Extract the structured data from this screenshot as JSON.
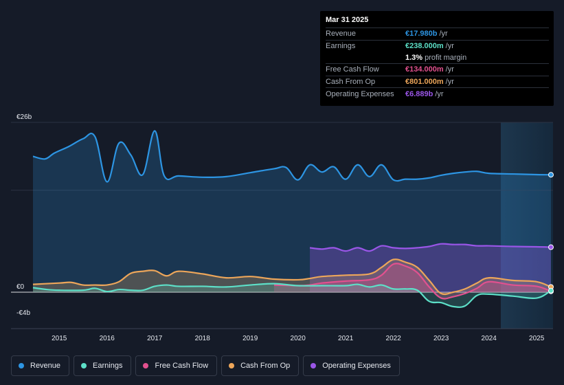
{
  "tooltip": {
    "date": "Mar 31 2025",
    "rows": [
      {
        "label": "Revenue",
        "value": "€17.980b",
        "unit": "/yr",
        "color": "#2d95e3"
      },
      {
        "label": "Earnings",
        "value": "€238.000m",
        "unit": "/yr",
        "color": "#5de0c8"
      },
      {
        "label": "",
        "value": "1.3%",
        "unit": "profit margin",
        "color": "#ffffff"
      },
      {
        "label": "Free Cash Flow",
        "value": "€134.000m",
        "unit": "/yr",
        "color": "#e2518f"
      },
      {
        "label": "Cash From Op",
        "value": "€801.000m",
        "unit": "/yr",
        "color": "#eda65a"
      },
      {
        "label": "Operating Expenses",
        "value": "€6.889b",
        "unit": "/yr",
        "color": "#9a56e8"
      }
    ]
  },
  "legend": [
    {
      "label": "Revenue",
      "color": "#2d95e3"
    },
    {
      "label": "Earnings",
      "color": "#5de0c8"
    },
    {
      "label": "Free Cash Flow",
      "color": "#e2518f"
    },
    {
      "label": "Cash From Op",
      "color": "#eda65a"
    },
    {
      "label": "Operating Expenses",
      "color": "#9a56e8"
    }
  ],
  "chart_data": {
    "type": "area",
    "title": "",
    "xlabel": "",
    "ylabel": "",
    "ylim": [
      -4,
      26
    ],
    "xlim": [
      2014.45,
      2025.3
    ],
    "y_tick_labels": [
      {
        "value": 26,
        "label": "€26b"
      },
      {
        "value": 0,
        "label": "€0"
      },
      {
        "value": -4,
        "label": "-€4b"
      }
    ],
    "x_ticks": [
      2015,
      2016,
      2017,
      2018,
      2019,
      2020,
      2021,
      2022,
      2023,
      2024,
      2025
    ],
    "x_tick_labels": [
      "2015",
      "2016",
      "2017",
      "2018",
      "2019",
      "2020",
      "2021",
      "2022",
      "2023",
      "2024",
      "2025"
    ],
    "forecast_start": 2024.25,
    "series": [
      {
        "name": "Revenue",
        "color": "#2d95e3",
        "x": [
          2014.45,
          2014.7,
          2014.9,
          2015.2,
          2015.5,
          2015.75,
          2016.0,
          2016.25,
          2016.5,
          2016.75,
          2017.0,
          2017.2,
          2017.5,
          2018.0,
          2018.5,
          2019.0,
          2019.5,
          2019.75,
          2020.0,
          2020.25,
          2020.5,
          2020.75,
          2021.0,
          2021.25,
          2021.5,
          2021.75,
          2022.0,
          2022.25,
          2022.5,
          2022.75,
          2023.0,
          2023.25,
          2023.5,
          2023.75,
          2024.0,
          2024.5,
          2025.0,
          2025.3
        ],
        "values": [
          20.8,
          20.4,
          21.3,
          22.3,
          23.5,
          23.8,
          16.9,
          22.8,
          21.0,
          18.0,
          24.7,
          17.8,
          17.8,
          17.6,
          17.7,
          18.3,
          18.9,
          19.1,
          17.2,
          19.5,
          18.4,
          19.2,
          17.3,
          19.5,
          17.7,
          19.5,
          17.2,
          17.3,
          17.3,
          17.5,
          17.9,
          18.2,
          18.4,
          18.5,
          18.2,
          18.1,
          18.0,
          17.98
        ]
      },
      {
        "name": "Operating Expenses",
        "color": "#9a56e8",
        "x": [
          2020.25,
          2020.5,
          2020.75,
          2021.0,
          2021.25,
          2021.5,
          2021.75,
          2022.0,
          2022.25,
          2022.5,
          2022.75,
          2023.0,
          2023.25,
          2023.5,
          2023.75,
          2024.0,
          2024.5,
          2025.0,
          2025.3
        ],
        "values": [
          6.8,
          6.6,
          6.8,
          6.3,
          6.8,
          6.3,
          7.1,
          6.8,
          6.7,
          6.8,
          7.0,
          7.4,
          7.3,
          7.3,
          7.1,
          7.1,
          7.0,
          6.95,
          6.889
        ]
      },
      {
        "name": "Cash From Op",
        "color": "#eda65a",
        "x": [
          2014.45,
          2015.0,
          2015.25,
          2015.5,
          2015.75,
          2016.0,
          2016.25,
          2016.5,
          2016.75,
          2017.0,
          2017.25,
          2017.5,
          2018.0,
          2018.5,
          2019.0,
          2019.5,
          2020.0,
          2020.25,
          2020.5,
          2021.0,
          2021.5,
          2021.75,
          2022.0,
          2022.25,
          2022.5,
          2022.75,
          2023.0,
          2023.25,
          2023.5,
          2023.75,
          2024.0,
          2024.5,
          2025.0,
          2025.3
        ],
        "values": [
          1.2,
          1.4,
          1.5,
          1.1,
          1.1,
          1.1,
          1.6,
          2.9,
          3.2,
          3.3,
          2.5,
          3.2,
          2.8,
          2.2,
          2.4,
          2.0,
          1.9,
          2.1,
          2.4,
          2.6,
          2.8,
          3.8,
          5.0,
          4.6,
          3.8,
          1.8,
          -0.2,
          0.0,
          0.5,
          1.4,
          2.2,
          1.8,
          1.6,
          0.801
        ]
      },
      {
        "name": "Free Cash Flow",
        "color": "#e2518f",
        "x": [
          2019.5,
          2020.0,
          2020.25,
          2020.5,
          2021.0,
          2021.5,
          2021.75,
          2022.0,
          2022.25,
          2022.5,
          2022.75,
          2023.0,
          2023.25,
          2023.5,
          2023.75,
          2024.0,
          2024.5,
          2025.0,
          2025.3
        ],
        "values": [
          1.1,
          1.0,
          1.1,
          1.4,
          1.7,
          1.9,
          2.6,
          4.3,
          4.0,
          3.0,
          0.8,
          -0.9,
          -0.7,
          -0.2,
          0.6,
          1.6,
          1.1,
          0.9,
          0.134
        ]
      },
      {
        "name": "Earnings",
        "color": "#5de0c8",
        "x": [
          2014.45,
          2014.75,
          2015.0,
          2015.5,
          2015.75,
          2016.0,
          2016.25,
          2016.5,
          2016.75,
          2017.0,
          2017.25,
          2017.5,
          2018.0,
          2018.5,
          2019.0,
          2019.5,
          2020.0,
          2020.5,
          2021.0,
          2021.25,
          2021.5,
          2021.75,
          2022.0,
          2022.25,
          2022.5,
          2022.75,
          2023.0,
          2023.25,
          2023.5,
          2023.75,
          2024.0,
          2024.5,
          2025.0,
          2025.3
        ],
        "values": [
          0.7,
          0.4,
          0.3,
          0.3,
          0.6,
          0.1,
          0.4,
          0.3,
          0.3,
          0.9,
          1.1,
          0.9,
          0.9,
          0.8,
          1.1,
          1.3,
          1.0,
          1.0,
          1.0,
          1.2,
          0.8,
          1.1,
          0.5,
          0.5,
          0.3,
          -1.4,
          -1.6,
          -2.2,
          -2.1,
          -0.5,
          -0.3,
          -0.6,
          -0.9,
          0.238
        ]
      }
    ]
  }
}
